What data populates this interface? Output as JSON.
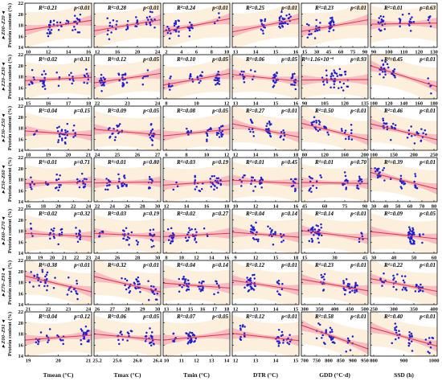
{
  "figure": {
    "y_axis_label": "Protein content (%)",
    "x_axis_labels": [
      "Tmean (°C)",
      "Tmax (°C)",
      "Tmin (°C)",
      "DTR (°C)",
      "GDD (°C·d)",
      "SSD (h)"
    ],
    "row_labels": [
      "Z00–Z20",
      "Z20–Z30",
      "Z30–Z50",
      "Z50–Z60",
      "Z60–Z70",
      "Z70–Z91",
      "Z00–Z91"
    ],
    "colors": {
      "points": "#1f1fd0",
      "fit_line": "#e23b4c",
      "ci_band": "#f7b7bf",
      "pi_band": "#fcefdc",
      "axes": "#000000"
    }
  },
  "chart_data": {
    "type": "scatter",
    "ylim": [
      14,
      22
    ],
    "yticks": [
      "14",
      "16",
      "18",
      "20",
      "22"
    ],
    "panels": [
      {
        "row": 0,
        "col": 0,
        "r2": "R²=0.21",
        "p": "p<0.01",
        "xticks": [
          "10",
          "12",
          "14",
          "16"
        ],
        "xlim": [
          8.5,
          17.5
        ],
        "fit": [
          [
            8.5,
            17.1
          ],
          [
            17.5,
            18.9
          ]
        ]
      },
      {
        "row": 0,
        "col": 1,
        "r2": "R²=0.28",
        "p": "p<0.01",
        "xticks": [
          "12",
          "16",
          "20",
          "24"
        ],
        "xlim": [
          10,
          26
        ],
        "fit": [
          [
            10,
            17.0
          ],
          [
            26,
            19.0
          ]
        ]
      },
      {
        "row": 0,
        "col": 2,
        "r2": "R²=0.24",
        "p": "p<0.01",
        "xticks": [
          "2",
          "4",
          "6",
          "8",
          "10"
        ],
        "xlim": [
          1,
          11
        ],
        "fit": [
          [
            1,
            16.9
          ],
          [
            11,
            19.2
          ]
        ]
      },
      {
        "row": 0,
        "col": 3,
        "r2": "R²=0.25",
        "p": "p<0.01",
        "xticks": [
          "13",
          "14",
          "15",
          "16"
        ],
        "xlim": [
          12.5,
          16.5
        ],
        "fit": [
          [
            12.5,
            16.8
          ],
          [
            16.5,
            19.2
          ]
        ]
      },
      {
        "row": 0,
        "col": 4,
        "r2": "R²=0.23",
        "p": "p<0.01",
        "xticks": [
          "15",
          "30",
          "45",
          "60",
          "75",
          "90"
        ],
        "xlim": [
          8,
          95
        ],
        "fit": [
          [
            8,
            16.9
          ],
          [
            95,
            19.0
          ]
        ]
      },
      {
        "row": 0,
        "col": 5,
        "r2": "R²=0.01",
        "p": "p=0.63",
        "xticks": [
          "90",
          "100",
          "110",
          "120",
          "130"
        ],
        "xlim": [
          88,
          133
        ],
        "fit": [
          [
            88,
            18.2
          ],
          [
            133,
            18.4
          ]
        ]
      },
      {
        "row": 1,
        "col": 0,
        "r2": "R²=0.02",
        "p": "p=0.31",
        "xticks": [
          "15",
          "16",
          "17",
          "18"
        ],
        "xlim": [
          14.5,
          19.5
        ],
        "fit": [
          [
            14.5,
            17.3
          ],
          [
            19.5,
            17.9
          ]
        ]
      },
      {
        "row": 1,
        "col": 1,
        "r2": "R²=0.12",
        "p": "p<0.05",
        "xticks": [
          "22",
          "23",
          "24"
        ],
        "xlim": [
          21,
          25.5
        ],
        "fit": [
          [
            21,
            16.9
          ],
          [
            25.5,
            18.6
          ]
        ]
      },
      {
        "row": 1,
        "col": 2,
        "r2": "R²=0.10",
        "p": "p<0.05",
        "xticks": [
          "8",
          "10",
          "12"
        ],
        "xlim": [
          6.5,
          13.5
        ],
        "fit": [
          [
            6.5,
            16.5
          ],
          [
            13.5,
            18.6
          ]
        ]
      },
      {
        "row": 1,
        "col": 3,
        "r2": "R²=0.06",
        "p": "p=0.05",
        "xticks": [
          "13",
          "14",
          "15",
          "16"
        ],
        "xlim": [
          12.5,
          16.5
        ],
        "fit": [
          [
            12.5,
            18.4
          ],
          [
            16.5,
            17.2
          ]
        ]
      },
      {
        "row": 1,
        "col": 4,
        "r2": "R²=1.16×10⁻³",
        "p": "p=0.93",
        "xticks": [
          "90",
          "105",
          "120",
          "135"
        ],
        "xlim": [
          82,
          143
        ],
        "fit": [
          [
            82,
            17.4
          ],
          [
            143,
            17.5
          ]
        ]
      },
      {
        "row": 1,
        "col": 5,
        "r2": "R²=0.45",
        "p": "p<0.01",
        "xticks": [
          "100",
          "120",
          "140",
          "160",
          "180"
        ],
        "xlim": [
          92,
          188
        ],
        "fit": [
          [
            92,
            20.0
          ],
          [
            188,
            16.2
          ]
        ]
      },
      {
        "row": 2,
        "col": 0,
        "r2": "R²=0.04",
        "p": "p=0.15",
        "xticks": [
          "18",
          "19",
          "20",
          "21"
        ],
        "xlim": [
          17.3,
          21.8
        ],
        "fit": [
          [
            17.3,
            17.5
          ],
          [
            21.8,
            16.7
          ]
        ]
      },
      {
        "row": 2,
        "col": 1,
        "r2": "R²=0.09",
        "p": "p<0.05",
        "xticks": [
          "24",
          "25",
          "26",
          "27"
        ],
        "xlim": [
          23.3,
          27.5
        ],
        "fit": [
          [
            23.3,
            17.8
          ],
          [
            27.5,
            16.8
          ]
        ]
      },
      {
        "row": 2,
        "col": 2,
        "r2": "R²=0.08",
        "p": "p<0.05",
        "xticks": [
          "6",
          "8",
          "10",
          "12"
        ],
        "xlim": [
          5,
          13
        ],
        "fit": [
          [
            5,
            16.6
          ],
          [
            13,
            17.8
          ]
        ]
      },
      {
        "row": 2,
        "col": 3,
        "r2": "R²=0.27",
        "p": "p<0.01",
        "xticks": [
          "12",
          "14",
          "16",
          "18"
        ],
        "xlim": [
          11,
          19
        ],
        "fit": [
          [
            11,
            18.8
          ],
          [
            19,
            16.4
          ]
        ]
      },
      {
        "row": 2,
        "col": 4,
        "r2": "R²=0.50",
        "p": "p<0.01",
        "xticks": [
          "80",
          "120",
          "160",
          "200"
        ],
        "xlim": [
          65,
          215
        ],
        "fit": [
          [
            65,
            18.9
          ],
          [
            215,
            15.9
          ]
        ]
      },
      {
        "row": 2,
        "col": 5,
        "r2": "R²=0.46",
        "p": "p<0.01",
        "xticks": [
          "100",
          "150",
          "200",
          "250"
        ],
        "xlim": [
          80,
          265
        ],
        "fit": [
          [
            80,
            18.8
          ],
          [
            265,
            15.9
          ]
        ]
      },
      {
        "row": 3,
        "col": 0,
        "r2": "R²=0.01",
        "p": "p=0.71",
        "xticks": [
          "16",
          "18",
          "20",
          "22",
          "24"
        ],
        "xlim": [
          15.5,
          24.5
        ],
        "fit": [
          [
            15.5,
            17.3
          ],
          [
            24.5,
            17.6
          ]
        ]
      },
      {
        "row": 3,
        "col": 1,
        "r2": "R²=0.01",
        "p": "p=0.80",
        "xticks": [
          "22",
          "24",
          "26",
          "28",
          "30"
        ],
        "xlim": [
          21.5,
          30.5
        ],
        "fit": [
          [
            21.5,
            17.4
          ],
          [
            30.5,
            17.6
          ]
        ]
      },
      {
        "row": 3,
        "col": 2,
        "r2": "R²=0.03",
        "p": "p=0.19",
        "xticks": [
          "12",
          "14",
          "16",
          "18"
        ],
        "xlim": [
          11,
          19
        ],
        "fit": [
          [
            11,
            17.0
          ],
          [
            19,
            17.8
          ]
        ]
      },
      {
        "row": 3,
        "col": 3,
        "r2": "R²=0.01",
        "p": "p=0.45",
        "xticks": [
          "10",
          "12",
          "14",
          "16"
        ],
        "xlim": [
          9,
          17
        ],
        "fit": [
          [
            9,
            17.9
          ],
          [
            17,
            17.3
          ]
        ]
      },
      {
        "row": 3,
        "col": 4,
        "r2": "R²=0.01",
        "p": "p=0.70",
        "xticks": [
          "45",
          "60",
          "75",
          "90"
        ],
        "xlim": [
          38,
          97
        ],
        "fit": [
          [
            38,
            17.5
          ],
          [
            97,
            17.3
          ]
        ]
      },
      {
        "row": 3,
        "col": 5,
        "r2": "R²=0.39",
        "p": "p<0.01",
        "xticks": [
          "30",
          "40",
          "50",
          "60",
          "70",
          "80"
        ],
        "xlim": [
          27,
          84
        ],
        "fit": [
          [
            27,
            19.3
          ],
          [
            84,
            16.3
          ]
        ]
      },
      {
        "row": 4,
        "col": 0,
        "r2": "R²=0.02",
        "p": "p=0.32",
        "xticks": [
          "18",
          "19",
          "20",
          "21",
          "22",
          "23"
        ],
        "xlim": [
          17.5,
          23.5
        ],
        "fit": [
          [
            17.5,
            17.6
          ],
          [
            23.5,
            17.0
          ]
        ]
      },
      {
        "row": 4,
        "col": 1,
        "r2": "R²=0.03",
        "p": "p=0.19",
        "xticks": [
          "24",
          "26",
          "28",
          "30"
        ],
        "xlim": [
          23,
          31
        ],
        "fit": [
          [
            23,
            17.6
          ],
          [
            31,
            17.0
          ]
        ]
      },
      {
        "row": 4,
        "col": 2,
        "r2": "R²=0.02",
        "p": "p=0.27",
        "xticks": [
          "8",
          "10",
          "12",
          "14",
          "16"
        ],
        "xlim": [
          7,
          17
        ],
        "fit": [
          [
            7,
            17.0
          ],
          [
            17,
            17.6
          ]
        ]
      },
      {
        "row": 4,
        "col": 3,
        "r2": "R²=0.04",
        "p": "p=0.14",
        "xticks": [
          "9",
          "12",
          "15",
          "18"
        ],
        "xlim": [
          8,
          19.5
        ],
        "fit": [
          [
            8,
            17.8
          ],
          [
            19.5,
            16.9
          ]
        ]
      },
      {
        "row": 4,
        "col": 4,
        "r2": "R²=0.14",
        "p": "p<0.01",
        "xticks": [
          "15",
          "30",
          "45"
        ],
        "xlim": [
          5,
          54
        ],
        "fit": [
          [
            5,
            18.1
          ],
          [
            54,
            16.6
          ]
        ]
      },
      {
        "row": 4,
        "col": 5,
        "r2": "R²=0.09",
        "p": "p<0.05",
        "xticks": [
          "30",
          "40",
          "50",
          "60"
        ],
        "xlim": [
          22,
          66
        ],
        "fit": [
          [
            22,
            17.9
          ],
          [
            66,
            16.6
          ]
        ]
      },
      {
        "row": 5,
        "col": 0,
        "r2": "R²=0.38",
        "p": "p<0.01",
        "xticks": [
          "21",
          "22",
          "23",
          "24"
        ],
        "xlim": [
          20.3,
          24.7
        ],
        "fit": [
          [
            20.3,
            19.2
          ],
          [
            24.7,
            16.3
          ]
        ]
      },
      {
        "row": 5,
        "col": 1,
        "r2": "R²=0.32",
        "p": "p<0.01",
        "xticks": [
          "26",
          "27",
          "28",
          "29",
          "30"
        ],
        "xlim": [
          25.3,
          30.6
        ],
        "fit": [
          [
            25.3,
            19.1
          ],
          [
            30.6,
            16.3
          ]
        ]
      },
      {
        "row": 5,
        "col": 2,
        "r2": "R²=0.04",
        "p": "p=0.14",
        "xticks": [
          "13",
          "14",
          "15",
          "16",
          "17",
          "18"
        ],
        "xlim": [
          12.3,
          18.7
        ],
        "fit": [
          [
            12.3,
            17.9
          ],
          [
            18.7,
            17.0
          ]
        ]
      },
      {
        "row": 5,
        "col": 3,
        "r2": "R²=0.12",
        "p": "p<0.01",
        "xticks": [
          "12",
          "13",
          "14",
          "15"
        ],
        "xlim": [
          11.3,
          15.7
        ],
        "fit": [
          [
            11.3,
            18.4
          ],
          [
            15.7,
            16.6
          ]
        ]
      },
      {
        "row": 5,
        "col": 4,
        "r2": "R²=0.23",
        "p": "p<0.01",
        "xticks": [
          "300",
          "350",
          "400",
          "450",
          "500"
        ],
        "xlim": [
          270,
          525
        ],
        "fit": [
          [
            270,
            18.6
          ],
          [
            525,
            16.5
          ]
        ]
      },
      {
        "row": 5,
        "col": 5,
        "r2": "R²=0.22",
        "p": "p<0.01",
        "xticks": [
          "250",
          "300",
          "350",
          "400"
        ],
        "xlim": [
          215,
          420
        ],
        "fit": [
          [
            215,
            18.7
          ],
          [
            420,
            16.4
          ]
        ]
      },
      {
        "row": 6,
        "col": 0,
        "r2": "R²=0.04",
        "p": "p=0.12",
        "xticks": [
          "19",
          "20",
          "21"
        ],
        "xlim": [
          18.5,
          21.5
        ],
        "fit": [
          [
            18.5,
            16.9
          ],
          [
            21.5,
            17.8
          ]
        ]
      },
      {
        "row": 6,
        "col": 1,
        "r2": "R²=0.06",
        "p": "p=0.05",
        "xticks": [
          "25.2",
          "25.6",
          "26.0",
          "26.4"
        ],
        "xlim": [
          25.1,
          26.6
        ],
        "fit": [
          [
            25.1,
            18.0
          ],
          [
            26.6,
            16.9
          ]
        ]
      },
      {
        "row": 6,
        "col": 2,
        "r2": "R²=0.07",
        "p": "p<0.05",
        "xticks": [
          "10",
          "11",
          "12",
          "13",
          "14"
        ],
        "xlim": [
          9.4,
          14.3
        ],
        "fit": [
          [
            9.4,
            16.9
          ],
          [
            14.3,
            18.0
          ]
        ]
      },
      {
        "row": 6,
        "col": 3,
        "r2": "R²=0.12",
        "p": "p<0.01",
        "xticks": [
          "12",
          "13",
          "14",
          "15"
        ],
        "xlim": [
          11.5,
          15.5
        ],
        "fit": [
          [
            11.5,
            18.1
          ],
          [
            15.5,
            16.8
          ]
        ]
      },
      {
        "row": 6,
        "col": 4,
        "r2": "R²=0.58",
        "p": "p<0.01",
        "xticks": [
          "700",
          "750",
          "800",
          "850",
          "900",
          "950"
        ],
        "xlim": [
          690,
          965
        ],
        "fit": [
          [
            690,
            19.6
          ],
          [
            965,
            15.3
          ]
        ]
      },
      {
        "row": 6,
        "col": 5,
        "r2": "R²=0.40",
        "p": "p<0.01",
        "xticks": [
          "800",
          "900",
          "1000"
        ],
        "xlim": [
          730,
          1080
        ],
        "fit": [
          [
            730,
            19.2
          ],
          [
            1080,
            15.8
          ]
        ]
      }
    ]
  }
}
